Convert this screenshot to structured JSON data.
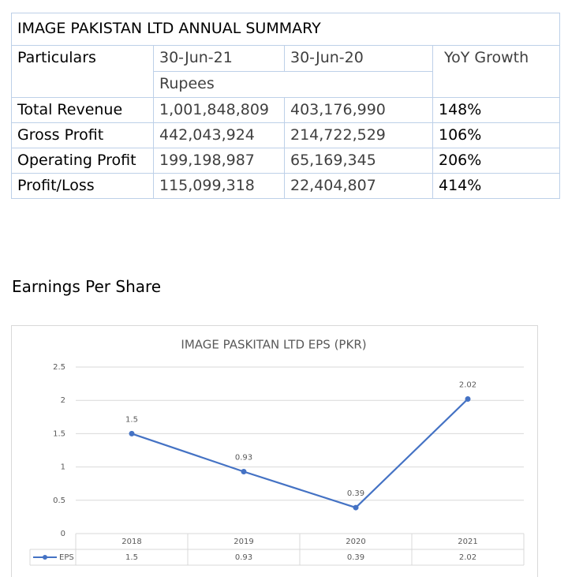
{
  "table": {
    "title": "IMAGE PAKISTAN LTD ANNUAL SUMMARY",
    "header": [
      "Particulars",
      "30-Jun-21",
      "30-Jun-20",
      "YoY Growth"
    ],
    "unit": "Rupees",
    "rows": [
      [
        "Total Revenue",
        "1,001,848,809",
        "403,176,990",
        "148%"
      ],
      [
        "Gross Profit",
        "442,043,924",
        "214,722,529",
        "106%"
      ],
      [
        "Operating Profit",
        "199,198,987",
        "65,169,345",
        "206%"
      ],
      [
        "Profit/Loss",
        "115,099,318",
        "22,404,807",
        "414%"
      ]
    ]
  },
  "section_title": "Earnings Per Share",
  "chart_data": {
    "type": "line",
    "title": "IMAGE PASKITAN LTD EPS (PKR)",
    "categories": [
      "2018",
      "2019",
      "2020",
      "2021"
    ],
    "series": [
      {
        "name": "EPS",
        "color": "#4472c4",
        "values": [
          1.5,
          0.93,
          0.39,
          2.02
        ]
      }
    ],
    "ylim": [
      0,
      2.5
    ],
    "yticks": [
      0,
      0.5,
      1,
      1.5,
      2,
      2.5
    ],
    "grid": true,
    "data_table": true
  }
}
